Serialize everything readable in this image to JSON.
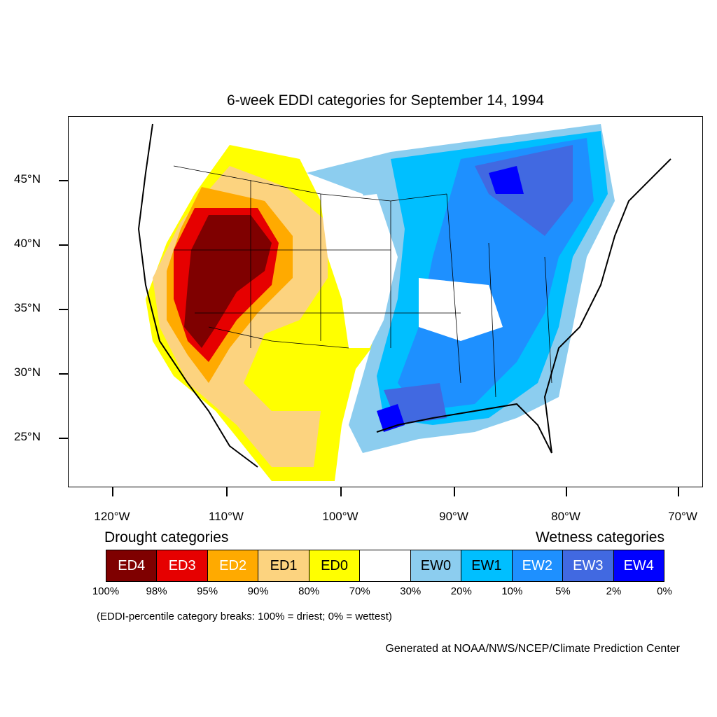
{
  "title": "6-week EDDI categories for September 14, 1994",
  "axes": {
    "lat_labels": [
      "45°N",
      "40°N",
      "35°N",
      "30°N",
      "25°N"
    ],
    "lon_labels": [
      "120°W",
      "110°W",
      "100°W",
      "90°W",
      "80°W",
      "70°W"
    ]
  },
  "legend": {
    "drought_heading": "Drought categories",
    "wetness_heading": "Wetness categories",
    "categories": [
      {
        "label": "ED4",
        "color": "#7f0000",
        "text_color": "#ffffff"
      },
      {
        "label": "ED3",
        "color": "#e60000",
        "text_color": "#ffffff"
      },
      {
        "label": "ED2",
        "color": "#ffaa00",
        "text_color": "#ffffff"
      },
      {
        "label": "ED1",
        "color": "#fcd37f",
        "text_color": "#000000"
      },
      {
        "label": "ED0",
        "color": "#ffff00",
        "text_color": "#000000"
      },
      {
        "label": "",
        "color": "#ffffff",
        "text_color": "#000000"
      },
      {
        "label": "EW0",
        "color": "#8ccdef",
        "text_color": "#000000"
      },
      {
        "label": "EW1",
        "color": "#00bfff",
        "text_color": "#000000"
      },
      {
        "label": "EW2",
        "color": "#1e90ff",
        "text_color": "#ffffff"
      },
      {
        "label": "EW3",
        "color": "#4169e1",
        "text_color": "#ffffff"
      },
      {
        "label": "EW4",
        "color": "#0000ff",
        "text_color": "#ffffff"
      }
    ],
    "percent_breaks": [
      "100%",
      "98%",
      "95%",
      "90%",
      "80%",
      "70%",
      "30%",
      "20%",
      "10%",
      "5%",
      "2%",
      "0%"
    ]
  },
  "note": "(EDDI-percentile category breaks: 100% = driest; 0% = wettest)",
  "credit": "Generated at NOAA/NWS/NCEP/Climate Prediction Center"
}
